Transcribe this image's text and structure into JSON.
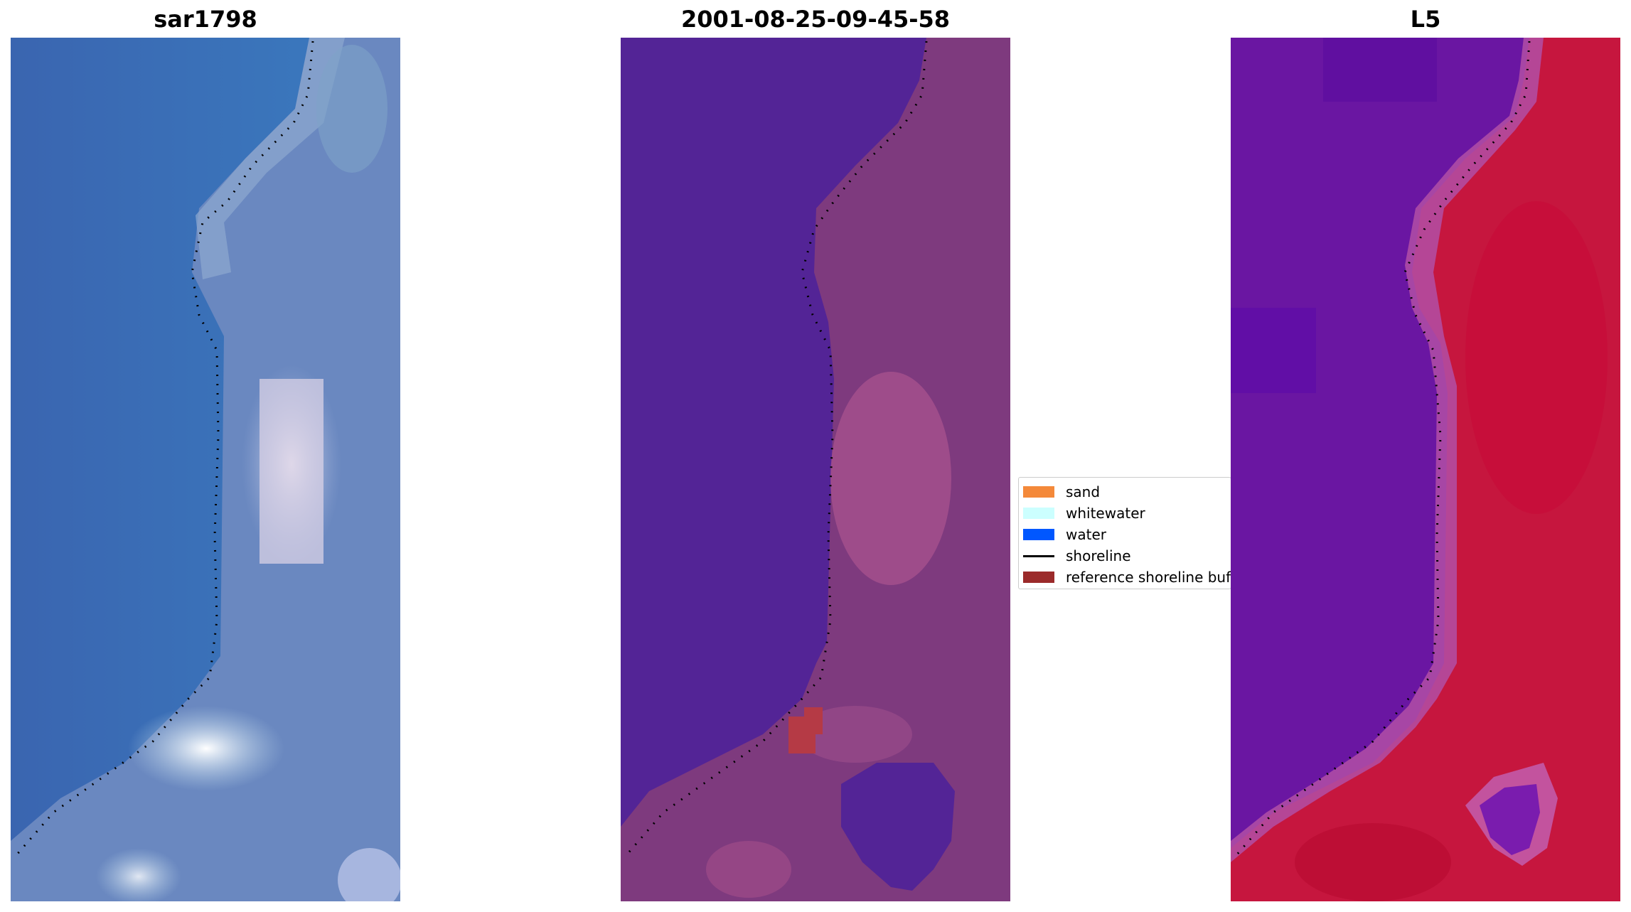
{
  "panels": [
    {
      "title": "sar1798"
    },
    {
      "title": "2001-08-25-09-45-58"
    },
    {
      "title": "L5"
    }
  ],
  "legend": {
    "items": [
      {
        "label": "sand",
        "color": "#f4893a",
        "kind": "patch"
      },
      {
        "label": "whitewater",
        "color": "#ccffff",
        "kind": "patch"
      },
      {
        "label": "water",
        "color": "#0057ff",
        "kind": "patch"
      },
      {
        "label": "shoreline",
        "color": "#000000",
        "kind": "line"
      },
      {
        "label": "reference shoreline buffer",
        "color": "#9b2a2a",
        "kind": "patch"
      }
    ]
  },
  "colors": {
    "rgb_water": "#3a6db5",
    "rgb_land": "#6a88c0",
    "rgb_whitewater": "#e6e4ef",
    "classified_water": "#532496",
    "classified_land": "#7e3a7e",
    "classified_buffer": "#b53a45",
    "mndwi_water": "#5e0fa0",
    "mndwi_land": "#c6163e"
  }
}
